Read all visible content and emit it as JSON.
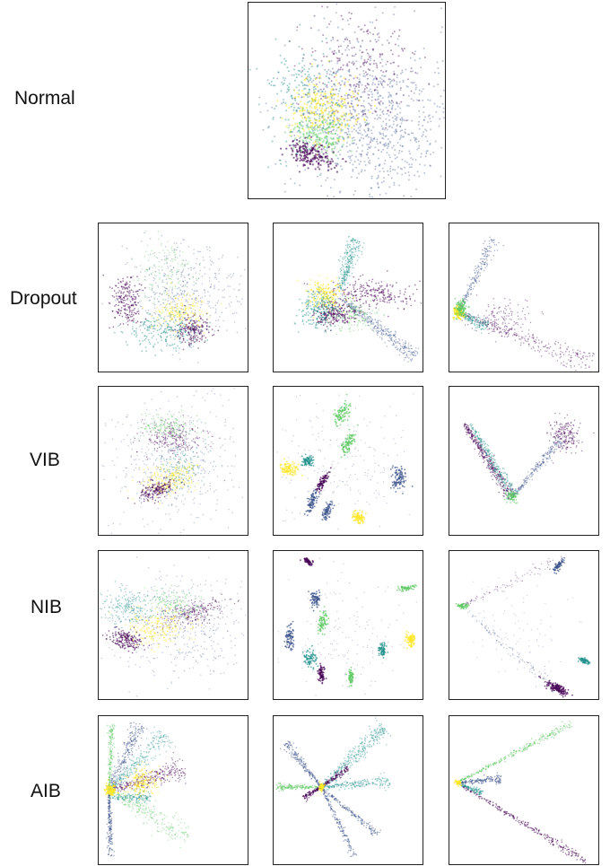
{
  "rows": [
    {
      "label": "Normal"
    },
    {
      "label": "Dropout"
    },
    {
      "label": "VIB"
    },
    {
      "label": "NIB"
    },
    {
      "label": "AIB"
    }
  ],
  "colormap": [
    "#440154",
    "#3b528b",
    "#21918c",
    "#5ec962",
    "#fde725"
  ],
  "chart_data": {
    "type": "scatter",
    "colormap_name": "viridis",
    "grid": false,
    "axes_ticks": false
  }
}
